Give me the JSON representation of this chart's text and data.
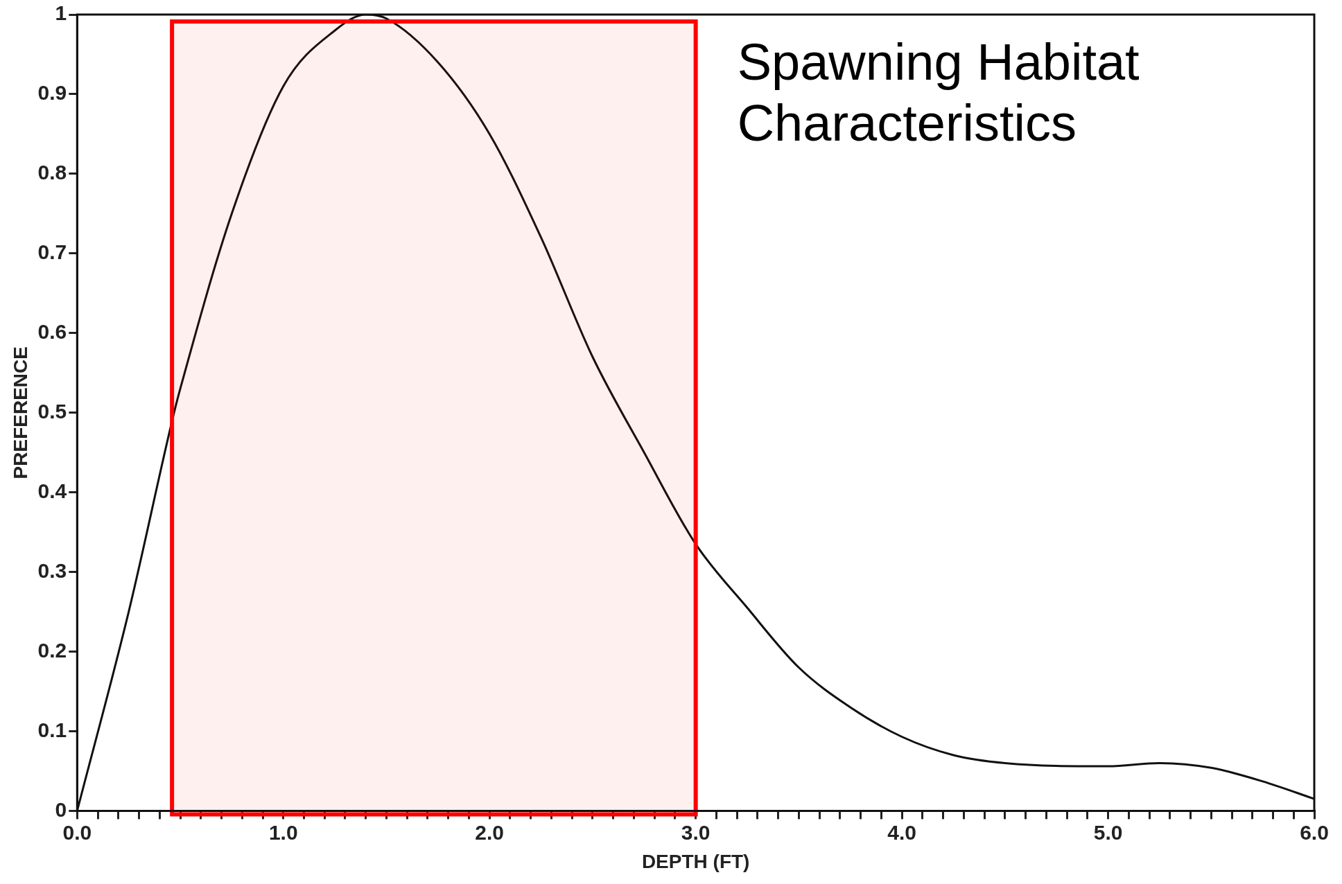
{
  "chart_data": {
    "type": "line",
    "title": "Spawning Habitat Characteristics",
    "xlabel": "DEPTH (FT)",
    "ylabel": "PREFERENCE",
    "x": [
      0,
      0.25,
      0.47,
      0.5,
      0.75,
      1.0,
      1.25,
      1.4,
      1.5,
      1.75,
      2.0,
      2.25,
      2.5,
      2.75,
      3.0,
      3.25,
      3.5,
      3.75,
      4.0,
      4.25,
      4.5,
      5.0,
      5.25,
      5.5,
      5.75,
      6.0
    ],
    "series": [
      {
        "color": "#111111",
        "values": [
          0,
          0.25,
          0.5,
          0.53,
          0.75,
          0.91,
          0.98,
          1.0,
          0.995,
          0.94,
          0.85,
          0.72,
          0.57,
          0.45,
          0.335,
          0.255,
          0.18,
          0.13,
          0.093,
          0.07,
          0.06,
          0.056,
          0.06,
          0.054,
          0.037,
          0.015
        ]
      }
    ],
    "xlim": [
      0,
      6
    ],
    "ylim": [
      0,
      1
    ],
    "xticks": [
      {
        "value": 0,
        "label": "0.0"
      },
      {
        "value": 0.1,
        "label": null
      },
      {
        "value": 0.2,
        "label": null
      },
      {
        "value": 0.3,
        "label": null
      },
      {
        "value": 0.4,
        "label": null
      },
      {
        "value": 0.5,
        "label": null
      },
      {
        "value": 0.6,
        "label": null
      },
      {
        "value": 0.7,
        "label": null
      },
      {
        "value": 0.8,
        "label": null
      },
      {
        "value": 0.9,
        "label": null
      },
      {
        "value": 1,
        "label": "1.0"
      },
      {
        "value": 1.1,
        "label": null
      },
      {
        "value": 1.2,
        "label": null
      },
      {
        "value": 1.3,
        "label": null
      },
      {
        "value": 1.4,
        "label": null
      },
      {
        "value": 1.5,
        "label": null
      },
      {
        "value": 1.6,
        "label": null
      },
      {
        "value": 1.7,
        "label": null
      },
      {
        "value": 1.8,
        "label": null
      },
      {
        "value": 1.9,
        "label": null
      },
      {
        "value": 2,
        "label": "2.0"
      },
      {
        "value": 2.1,
        "label": null
      },
      {
        "value": 2.2,
        "label": null
      },
      {
        "value": 2.3,
        "label": null
      },
      {
        "value": 2.4,
        "label": null
      },
      {
        "value": 2.5,
        "label": null
      },
      {
        "value": 2.6,
        "label": null
      },
      {
        "value": 2.7,
        "label": null
      },
      {
        "value": 2.8,
        "label": null
      },
      {
        "value": 2.9,
        "label": null
      },
      {
        "value": 3,
        "label": "3.0"
      },
      {
        "value": 3.1,
        "label": null
      },
      {
        "value": 3.2,
        "label": null
      },
      {
        "value": 3.3,
        "label": null
      },
      {
        "value": 3.4,
        "label": null
      },
      {
        "value": 3.5,
        "label": null
      },
      {
        "value": 3.6,
        "label": null
      },
      {
        "value": 3.7,
        "label": null
      },
      {
        "value": 3.8,
        "label": null
      },
      {
        "value": 3.9,
        "label": null
      },
      {
        "value": 4,
        "label": "4.0"
      },
      {
        "value": 4.1,
        "label": null
      },
      {
        "value": 4.2,
        "label": null
      },
      {
        "value": 4.3,
        "label": null
      },
      {
        "value": 4.4,
        "label": null
      },
      {
        "value": 4.5,
        "label": null
      },
      {
        "value": 4.6,
        "label": null
      },
      {
        "value": 4.7,
        "label": null
      },
      {
        "value": 4.8,
        "label": null
      },
      {
        "value": 4.9,
        "label": null
      },
      {
        "value": 5,
        "label": "5.0"
      },
      {
        "value": 5.1,
        "label": null
      },
      {
        "value": 5.2,
        "label": null
      },
      {
        "value": 5.3,
        "label": null
      },
      {
        "value": 5.4,
        "label": null
      },
      {
        "value": 5.5,
        "label": null
      },
      {
        "value": 5.6,
        "label": null
      },
      {
        "value": 5.7,
        "label": null
      },
      {
        "value": 5.8,
        "label": null
      },
      {
        "value": 5.9,
        "label": null
      },
      {
        "value": 6,
        "label": "6.0"
      }
    ],
    "yticks": [
      0,
      0.1,
      0.2,
      0.3,
      0.4,
      0.5,
      0.6,
      0.7,
      0.8,
      0.9,
      1
    ],
    "bands": [
      {
        "axis": "x",
        "from": 0.46,
        "to": 3.0,
        "color": "#ff0000"
      }
    ],
    "grid": false,
    "legend": false,
    "marker": "none",
    "line_style": "solid"
  }
}
